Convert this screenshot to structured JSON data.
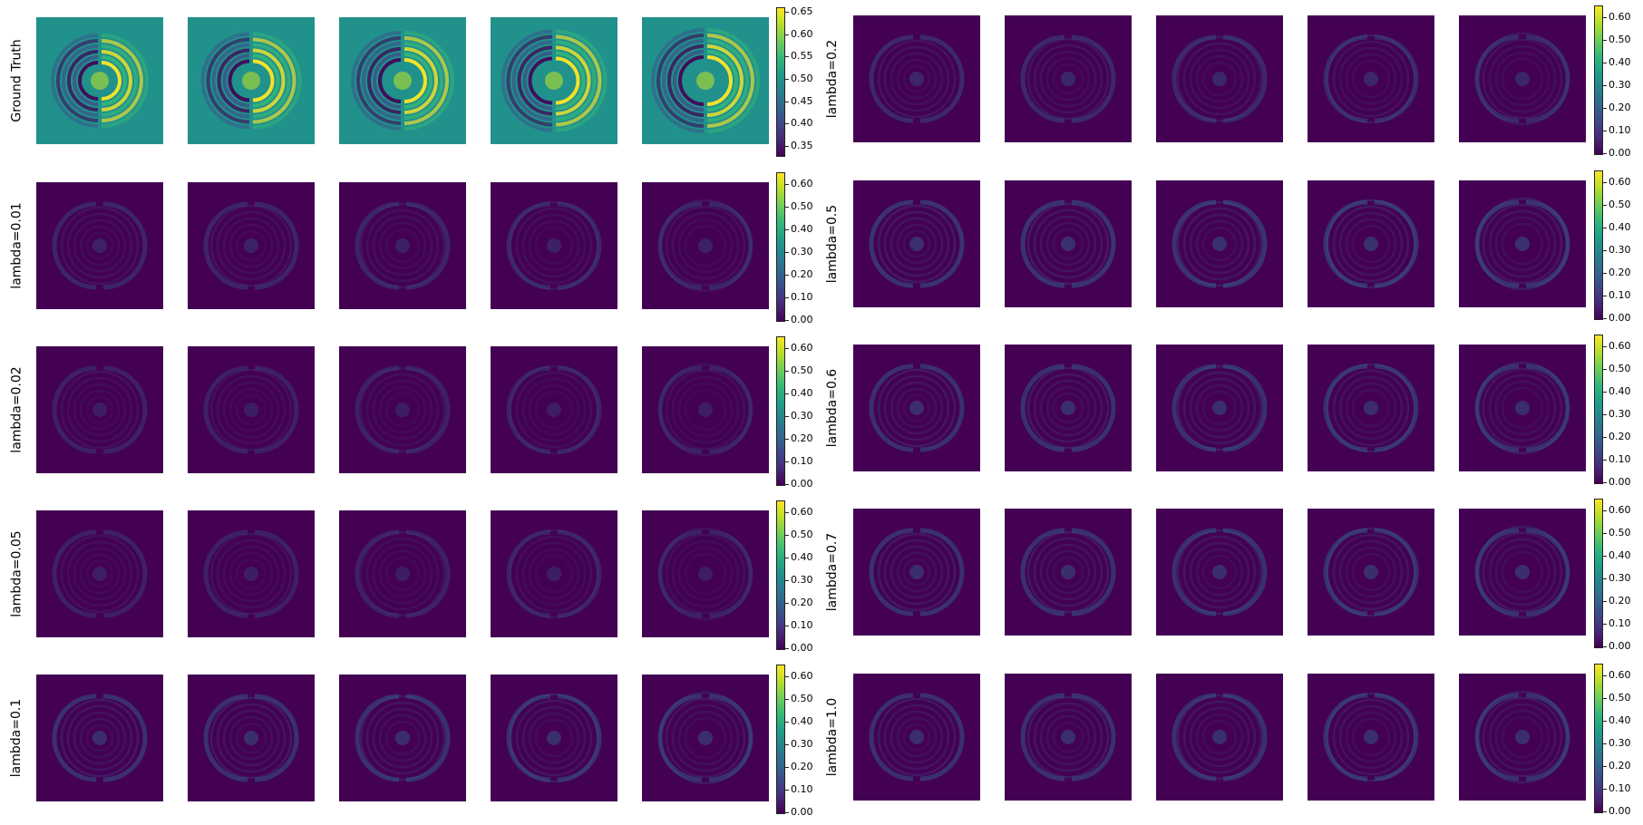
{
  "chart_data": {
    "type": "heatmap",
    "layout": "grid of 2 blocks x 5 rows x 5 image panels",
    "colormap": "viridis",
    "left_block": {
      "rows": [
        {
          "label": "Ground Truth",
          "background": "#21918c",
          "ticks": [
            "0.65",
            "0.60",
            "0.55",
            "0.50",
            "0.45",
            "0.40",
            "0.35"
          ],
          "vmin": 0.33,
          "vmax": 0.66,
          "intensity": 1.0
        },
        {
          "label": "lambda=0.01",
          "background": "#440154",
          "ticks": [
            "0.60",
            "0.50",
            "0.40",
            "0.30",
            "0.20",
            "0.10",
            "0.00"
          ],
          "vmin": 0.0,
          "vmax": 0.65,
          "intensity": 0.25
        },
        {
          "label": "lambda=0.02",
          "background": "#440154",
          "ticks": [
            "0.60",
            "0.50",
            "0.40",
            "0.30",
            "0.20",
            "0.10",
            "0.00"
          ],
          "vmin": 0.0,
          "vmax": 0.65,
          "intensity": 0.22
        },
        {
          "label": "lambda=0.05",
          "background": "#440154",
          "ticks": [
            "0.60",
            "0.50",
            "0.40",
            "0.30",
            "0.20",
            "0.10",
            "0.00"
          ],
          "vmin": 0.0,
          "vmax": 0.65,
          "intensity": 0.22
        },
        {
          "label": "lambda=0.1",
          "background": "#440154",
          "ticks": [
            "0.60",
            "0.50",
            "0.40",
            "0.30",
            "0.20",
            "0.10",
            "0.00"
          ],
          "vmin": 0.0,
          "vmax": 0.65,
          "intensity": 0.33
        }
      ]
    },
    "right_block": {
      "rows": [
        {
          "label": "lambda=0.2",
          "background": "#440154",
          "ticks": [
            "0.60",
            "0.50",
            "0.40",
            "0.30",
            "0.20",
            "0.10",
            "0.00"
          ],
          "vmin": 0.0,
          "vmax": 0.65,
          "intensity": 0.28
        },
        {
          "label": "lambda=0.5",
          "background": "#440154",
          "ticks": [
            "0.60",
            "0.50",
            "0.40",
            "0.30",
            "0.20",
            "0.10",
            "0.00"
          ],
          "vmin": 0.0,
          "vmax": 0.65,
          "intensity": 0.35
        },
        {
          "label": "lambda=0.6",
          "background": "#440154",
          "ticks": [
            "0.60",
            "0.50",
            "0.40",
            "0.30",
            "0.20",
            "0.10",
            "0.00"
          ],
          "vmin": 0.0,
          "vmax": 0.65,
          "intensity": 0.33
        },
        {
          "label": "lambda=0.7",
          "background": "#440154",
          "ticks": [
            "0.60",
            "0.50",
            "0.40",
            "0.30",
            "0.20",
            "0.10",
            "0.00"
          ],
          "vmin": 0.0,
          "vmax": 0.65,
          "intensity": 0.33
        },
        {
          "label": "lambda=1.0",
          "background": "#440154",
          "ticks": [
            "0.60",
            "0.50",
            "0.40",
            "0.30",
            "0.20",
            "0.10",
            "0.00"
          ],
          "vmin": 0.0,
          "vmax": 0.65,
          "intensity": 0.33
        }
      ]
    },
    "panels_per_row": 5
  }
}
